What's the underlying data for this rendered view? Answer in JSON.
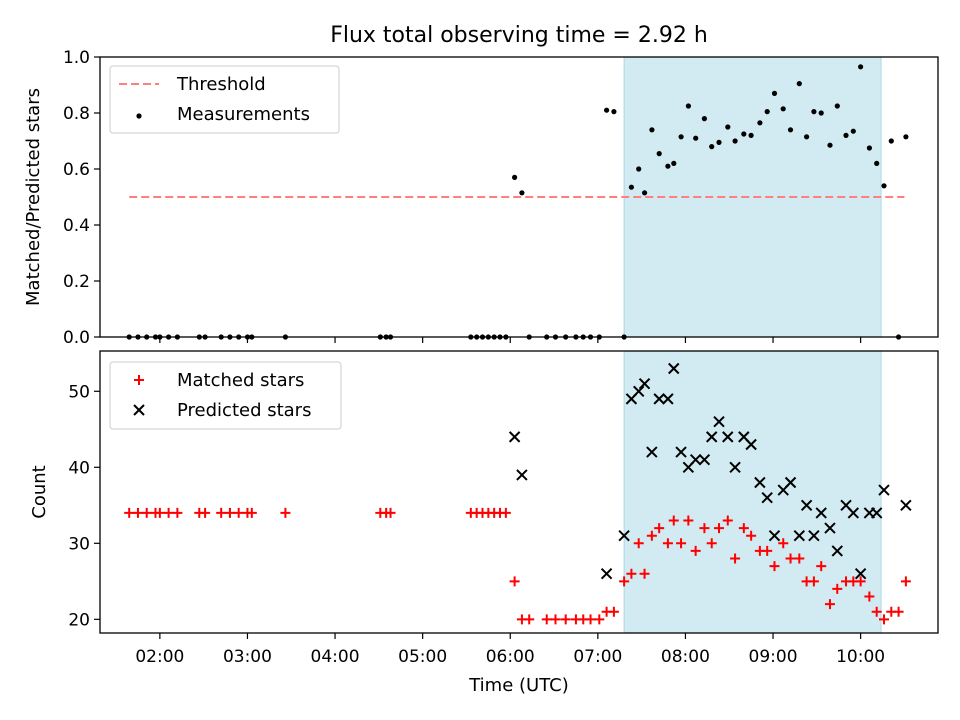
{
  "title": "Flux total observing time = 2.92 h",
  "colors": {
    "span": "#add8e6",
    "threshold": "#ff7f7f",
    "measurement": "#000000",
    "matched": "#ff0000",
    "predicted": "#000000"
  },
  "chart_data": [
    {
      "type": "scatter",
      "ylabel": "Matched/Predicted stars",
      "ylim": [
        0,
        1.0
      ],
      "yticks": [
        0.0,
        0.2,
        0.4,
        0.6,
        0.8,
        1.0
      ],
      "ytick_labels": [
        "0.0",
        "0.2",
        "0.4",
        "0.6",
        "0.8",
        "1.0"
      ],
      "xlim": [
        "01:19",
        "10:53"
      ],
      "grid": false,
      "legend": {
        "location": "upper-left",
        "entries": [
          "Threshold",
          "Measurements"
        ]
      },
      "highlight_span": [
        "07:18",
        "10:14"
      ],
      "threshold": {
        "name": "Threshold",
        "value": 0.5,
        "x": [
          "01:39",
          "10:30"
        ]
      },
      "series": [
        {
          "name": "Measurements",
          "x": [
            "01:39",
            "01:45",
            "01:51",
            "01:57",
            "02:00",
            "02:06",
            "02:12",
            "02:27",
            "02:31",
            "02:42",
            "02:48",
            "02:54",
            "03:00",
            "03:03",
            "03:26",
            "04:31",
            "04:35",
            "04:38",
            "05:33",
            "05:37",
            "05:41",
            "05:45",
            "05:49",
            "05:53",
            "05:57",
            "06:03",
            "06:08",
            "06:13",
            "06:25",
            "06:31",
            "06:38",
            "06:45",
            "06:50",
            "06:55",
            "07:01",
            "07:06",
            "07:11",
            "07:18",
            "07:23",
            "07:28",
            "07:32",
            "07:37",
            "07:42",
            "07:48",
            "07:52",
            "07:57",
            "08:02",
            "08:07",
            "08:13",
            "08:18",
            "08:23",
            "08:29",
            "08:34",
            "08:40",
            "08:45",
            "08:51",
            "08:56",
            "09:01",
            "09:07",
            "09:12",
            "09:18",
            "09:23",
            "09:28",
            "09:33",
            "09:39",
            "09:44",
            "09:50",
            "09:55",
            "10:00",
            "10:06",
            "10:11",
            "10:16",
            "10:21",
            "10:26",
            "10:31"
          ],
          "y": [
            0,
            0,
            0,
            0,
            0,
            0,
            0,
            0,
            0,
            0,
            0,
            0,
            0,
            0,
            0,
            0,
            0,
            0,
            0,
            0,
            0,
            0,
            0,
            0,
            0,
            0.57,
            0.515,
            0,
            0,
            0,
            0,
            0,
            0,
            0,
            0,
            0.81,
            0.805,
            0,
            0.535,
            0.6,
            0.515,
            0.74,
            0.655,
            0.61,
            0.62,
            0.715,
            0.825,
            0.71,
            0.78,
            0.68,
            0.695,
            0.75,
            0.7,
            0.725,
            0.72,
            0.765,
            0.805,
            0.87,
            0.815,
            0.74,
            0.905,
            0.715,
            0.805,
            0.8,
            0.685,
            0.825,
            0.72,
            0.735,
            0.965,
            0.675,
            0.62,
            0.54,
            0.7,
            0,
            0.715
          ]
        }
      ]
    },
    {
      "type": "scatter",
      "ylabel": "Count",
      "xlabel": "Time (UTC)",
      "ylim": [
        18.2,
        55.3
      ],
      "yticks": [
        20,
        30,
        40,
        50
      ],
      "ytick_labels": [
        "20",
        "30",
        "40",
        "50"
      ],
      "xticks": [
        "02:00",
        "03:00",
        "04:00",
        "05:00",
        "06:00",
        "07:00",
        "08:00",
        "09:00",
        "10:00"
      ],
      "xlim": [
        "01:19",
        "10:53"
      ],
      "grid": false,
      "legend": {
        "location": "upper-left",
        "entries": [
          "Matched stars",
          "Predicted stars"
        ]
      },
      "highlight_span": [
        "07:18",
        "10:14"
      ],
      "series": [
        {
          "name": "Matched stars",
          "marker": "+",
          "x": [
            "01:39",
            "01:45",
            "01:51",
            "01:57",
            "02:00",
            "02:06",
            "02:12",
            "02:27",
            "02:31",
            "02:42",
            "02:48",
            "02:54",
            "03:00",
            "03:03",
            "03:26",
            "04:31",
            "04:35",
            "04:38",
            "05:33",
            "05:37",
            "05:41",
            "05:45",
            "05:49",
            "05:53",
            "05:57",
            "06:03",
            "06:08",
            "06:13",
            "06:25",
            "06:31",
            "06:38",
            "06:45",
            "06:50",
            "06:55",
            "07:01",
            "07:06",
            "07:11",
            "07:18",
            "07:23",
            "07:28",
            "07:32",
            "07:37",
            "07:42",
            "07:48",
            "07:52",
            "07:57",
            "08:02",
            "08:07",
            "08:13",
            "08:18",
            "08:23",
            "08:29",
            "08:34",
            "08:40",
            "08:45",
            "08:51",
            "08:56",
            "09:01",
            "09:07",
            "09:12",
            "09:18",
            "09:23",
            "09:28",
            "09:33",
            "09:39",
            "09:44",
            "09:50",
            "09:55",
            "10:00",
            "10:06",
            "10:11",
            "10:16",
            "10:21",
            "10:26",
            "10:31"
          ],
          "y": [
            34,
            34,
            34,
            34,
            34,
            34,
            34,
            34,
            34,
            34,
            34,
            34,
            34,
            34,
            34,
            34,
            34,
            34,
            34,
            34,
            34,
            34,
            34,
            34,
            34,
            25,
            20,
            20,
            20,
            20,
            20,
            20,
            20,
            20,
            20,
            21,
            21,
            25,
            26,
            30,
            26,
            31,
            32,
            30,
            33,
            30,
            33,
            29,
            32,
            30,
            32,
            33,
            28,
            32,
            31,
            29,
            29,
            27,
            30,
            28,
            28,
            25,
            25,
            27,
            22,
            24,
            25,
            25,
            25,
            23,
            21,
            20,
            21,
            21,
            25
          ]
        },
        {
          "name": "Predicted stars",
          "marker": "x",
          "x": [
            "07:06",
            "07:18",
            "07:23",
            "07:28",
            "07:32",
            "07:37",
            "07:42",
            "07:48",
            "07:52",
            "07:57",
            "08:02",
            "08:07",
            "08:13",
            "08:18",
            "08:23",
            "08:29",
            "08:34",
            "08:40",
            "08:45",
            "08:51",
            "08:56",
            "09:01",
            "09:07",
            "09:12",
            "09:18",
            "09:23",
            "09:28",
            "09:33",
            "09:39",
            "09:44",
            "09:50",
            "09:55",
            "10:00",
            "10:06",
            "10:11",
            "10:16",
            "10:31",
            "06:03",
            "06:08"
          ],
          "y": [
            26,
            31,
            49,
            50,
            51,
            42,
            49,
            49,
            53,
            42,
            40,
            41,
            41,
            44,
            46,
            44,
            40,
            44,
            43,
            38,
            36,
            31,
            37,
            38,
            31,
            35,
            31,
            34,
            32,
            29,
            35,
            34,
            26,
            34,
            34,
            37,
            35,
            44,
            39
          ]
        }
      ]
    }
  ]
}
